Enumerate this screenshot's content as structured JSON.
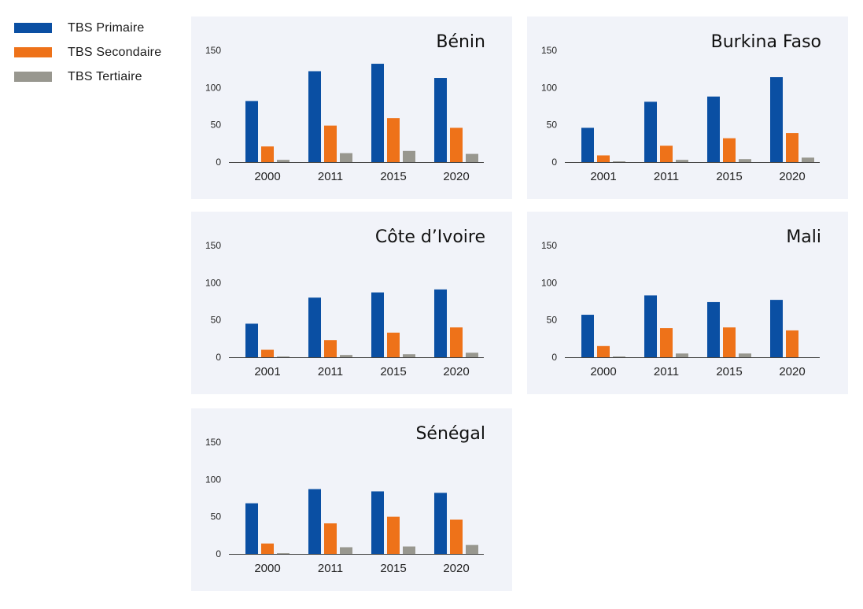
{
  "legend": {
    "items": [
      {
        "label": "TBS Primaire",
        "color": "#0a4fa3"
      },
      {
        "label": "TBS Secondaire",
        "color": "#ee7219"
      },
      {
        "label": "TBS Tertiaire",
        "color": "#98978f"
      }
    ]
  },
  "chart_data": [
    {
      "type": "bar",
      "title": "Bénin",
      "categories": [
        "2000",
        "2011",
        "2015",
        "2020"
      ],
      "yticks": [
        0,
        50,
        100,
        150
      ],
      "ylim": [
        0,
        150
      ],
      "series": [
        {
          "name": "TBS Primaire",
          "values": [
            82,
            122,
            132,
            113
          ]
        },
        {
          "name": "TBS Secondaire",
          "values": [
            21,
            49,
            59,
            46
          ]
        },
        {
          "name": "TBS Tertiaire",
          "values": [
            3,
            12,
            15,
            11
          ]
        }
      ]
    },
    {
      "type": "bar",
      "title": "Burkina Faso",
      "categories": [
        "2001",
        "2011",
        "2015",
        "2020"
      ],
      "yticks": [
        0,
        50,
        100,
        150
      ],
      "ylim": [
        0,
        150
      ],
      "series": [
        {
          "name": "TBS Primaire",
          "values": [
            46,
            81,
            88,
            114
          ]
        },
        {
          "name": "TBS Secondaire",
          "values": [
            9,
            22,
            32,
            39
          ]
        },
        {
          "name": "TBS Tertiaire",
          "values": [
            1,
            3,
            4,
            6
          ]
        }
      ]
    },
    {
      "type": "bar",
      "title": "Côte d’Ivoire",
      "categories": [
        "2001",
        "2011",
        "2015",
        "2020"
      ],
      "yticks": [
        0,
        50,
        100,
        150
      ],
      "ylim": [
        0,
        150
      ],
      "series": [
        {
          "name": "TBS Primaire",
          "values": [
            45,
            80,
            87,
            91
          ]
        },
        {
          "name": "TBS Secondaire",
          "values": [
            10,
            23,
            33,
            40
          ]
        },
        {
          "name": "TBS Tertiaire",
          "values": [
            1,
            3,
            4,
            6
          ]
        }
      ]
    },
    {
      "type": "bar",
      "title": "Mali",
      "categories": [
        "2000",
        "2011",
        "2015",
        "2020"
      ],
      "yticks": [
        0,
        50,
        100,
        150
      ],
      "ylim": [
        0,
        150
      ],
      "series": [
        {
          "name": "TBS Primaire",
          "values": [
            57,
            83,
            74,
            77
          ]
        },
        {
          "name": "TBS Secondaire",
          "values": [
            15,
            39,
            40,
            36
          ]
        },
        {
          "name": "TBS Tertiaire",
          "values": [
            1,
            5,
            5,
            0
          ]
        }
      ]
    },
    {
      "type": "bar",
      "title": "Sénégal",
      "categories": [
        "2000",
        "2011",
        "2015",
        "2020"
      ],
      "yticks": [
        0,
        50,
        100,
        150
      ],
      "ylim": [
        0,
        150
      ],
      "series": [
        {
          "name": "TBS Primaire",
          "values": [
            68,
            87,
            84,
            82
          ]
        },
        {
          "name": "TBS Secondaire",
          "values": [
            14,
            41,
            50,
            46
          ]
        },
        {
          "name": "TBS Tertiaire",
          "values": [
            1,
            9,
            10,
            12
          ]
        }
      ]
    }
  ]
}
